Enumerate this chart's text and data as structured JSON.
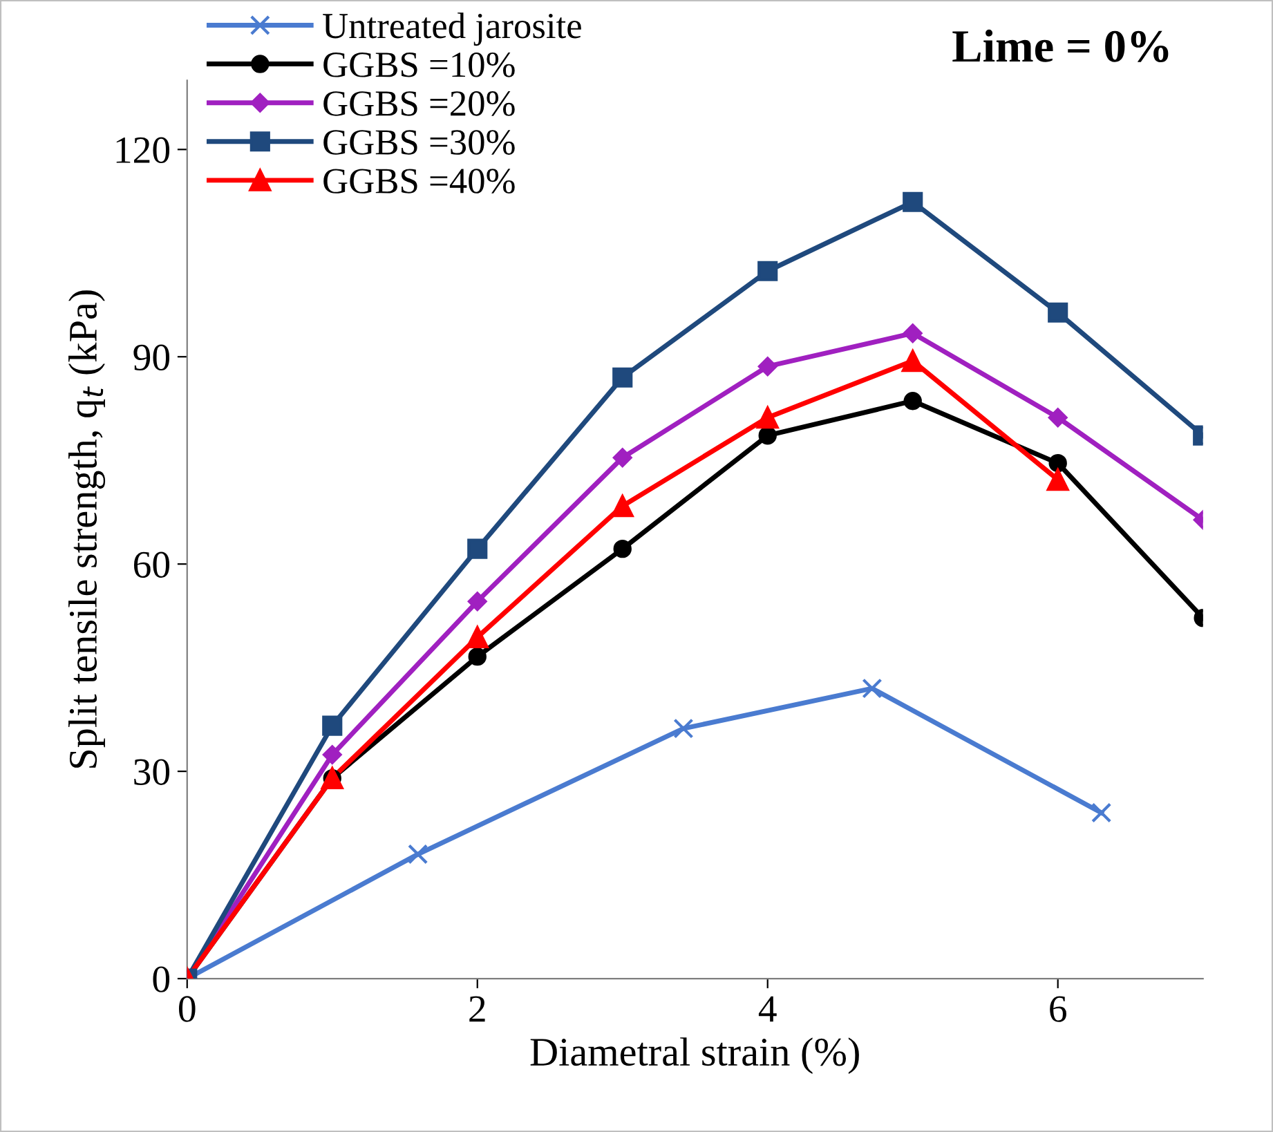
{
  "chart_data": {
    "type": "line",
    "xlabel": "Diametral strain (%)",
    "ylabel": "Split tensile strength, q$_{t}$ (kPa)",
    "annotations": [
      "Lime = 0%"
    ],
    "xlim": [
      0,
      7
    ],
    "xticks": [
      0,
      2,
      4,
      6
    ],
    "ylim": [
      0,
      130
    ],
    "yticks": [
      0,
      30,
      60,
      90,
      120
    ],
    "grid": false,
    "legend": "top left",
    "line_style": "solid",
    "series": [
      {
        "name": "Untreated jarosite",
        "color": "#4a7bd0",
        "marker": "cross",
        "x": [
          0,
          1.59,
          3.42,
          4.72,
          6.3
        ],
        "values": [
          0,
          18,
          36.2,
          42,
          24
        ]
      },
      {
        "name": "GGBS =10%",
        "color": "#000000",
        "marker": "circle",
        "x": [
          0,
          1,
          2,
          3,
          4,
          5,
          6,
          7
        ],
        "values": [
          0,
          29,
          46.6,
          62.2,
          78.6,
          83.6,
          74.6,
          52.2
        ]
      },
      {
        "name": "GGBS =20%",
        "color": "#a020c0",
        "marker": "diamond",
        "x": [
          0,
          1,
          2,
          3,
          4,
          5,
          6,
          7
        ],
        "values": [
          0,
          32.4,
          54.6,
          75.4,
          88.6,
          93.4,
          81.2,
          66.4
        ]
      },
      {
        "name": "GGBS =30%",
        "color": "#1f497d",
        "marker": "square",
        "x": [
          0,
          1,
          2,
          3,
          4,
          5,
          6,
          7
        ],
        "values": [
          0,
          36.6,
          62.2,
          87,
          102.4,
          112.4,
          96.4,
          78.6
        ]
      },
      {
        "name": "GGBS =40%",
        "color": "#ff0000",
        "marker": "triangle",
        "x": [
          0,
          1,
          2,
          3,
          4,
          5,
          6
        ],
        "values": [
          0,
          29,
          49.4,
          68.4,
          81.2,
          89.4,
          72.2
        ]
      }
    ]
  }
}
